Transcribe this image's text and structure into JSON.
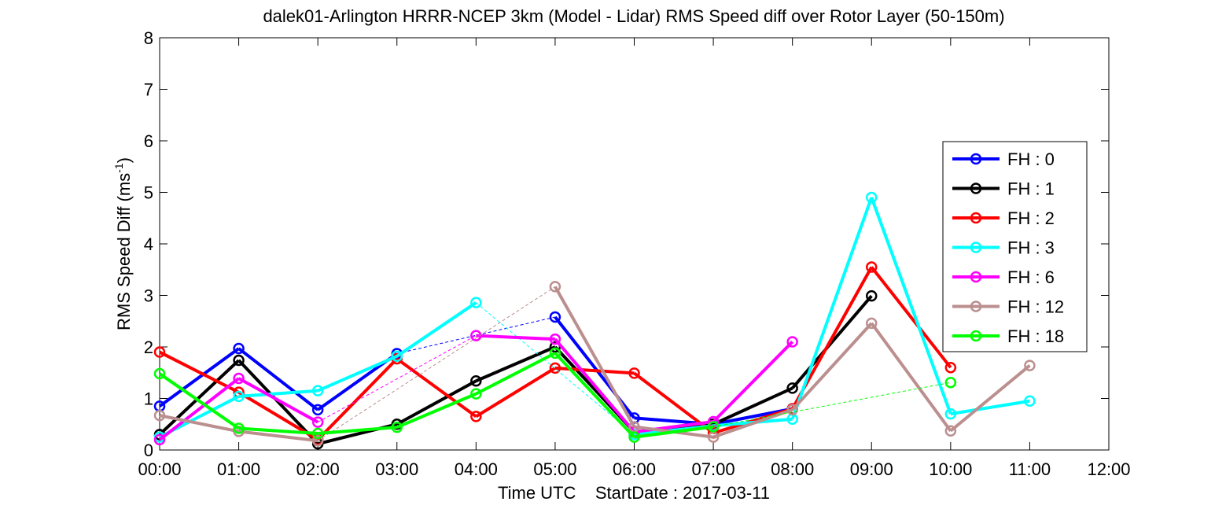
{
  "chart_data": {
    "type": "line",
    "title": "dalek01-Arlington HRRR-NCEP 3km (Model - Lidar) RMS Speed diff over Rotor Layer (50-150m)",
    "xlabel": "Time UTC    StartDate : 2017-03-11",
    "ylabel_main": "RMS Speed Diff (ms",
    "ylabel_sup": "-1",
    "ylabel_close": ")",
    "xlim": [
      0,
      12
    ],
    "ylim": [
      0,
      8
    ],
    "x_ticks": [
      0,
      1,
      2,
      3,
      4,
      5,
      6,
      7,
      8,
      9,
      10,
      11,
      12
    ],
    "x_tick_labels": [
      "00:00",
      "01:00",
      "02:00",
      "03:00",
      "04:00",
      "05:00",
      "06:00",
      "07:00",
      "08:00",
      "09:00",
      "10:00",
      "11:00",
      "12:00"
    ],
    "y_ticks": [
      0,
      1,
      2,
      3,
      4,
      5,
      6,
      7,
      8
    ],
    "y_tick_labels": [
      "0",
      "1",
      "2",
      "3",
      "4",
      "5",
      "6",
      "7",
      "8"
    ],
    "grid": false,
    "legend_position": "right",
    "series": [
      {
        "name": "FH : 0",
        "color": "#0000ff",
        "x": [
          0,
          1,
          2,
          3,
          5,
          6,
          7,
          8
        ],
        "y": [
          0.85,
          1.97,
          0.78,
          1.87,
          2.58,
          0.62,
          0.5,
          0.8
        ]
      },
      {
        "name": "FH : 1",
        "color": "#000000",
        "x": [
          0,
          1,
          2,
          3,
          4,
          5,
          6,
          7,
          8,
          9
        ],
        "y": [
          0.3,
          1.74,
          0.12,
          0.5,
          1.34,
          2.0,
          0.35,
          0.5,
          1.2,
          2.99
        ]
      },
      {
        "name": "FH : 2",
        "color": "#ff0000",
        "x": [
          0,
          1,
          2,
          3,
          4,
          5,
          6,
          7,
          8,
          9,
          10
        ],
        "y": [
          1.9,
          1.12,
          0.2,
          1.77,
          0.65,
          1.59,
          1.49,
          0.33,
          0.8,
          3.55,
          1.6
        ]
      },
      {
        "name": "FH : 3",
        "color": "#00ffff",
        "x": [
          0,
          1,
          2,
          3,
          4,
          6,
          7,
          8,
          9,
          10,
          11
        ],
        "y": [
          0.25,
          1.04,
          1.15,
          1.82,
          2.86,
          0.3,
          0.47,
          0.6,
          4.9,
          0.7,
          0.95
        ]
      },
      {
        "name": "FH : 6",
        "color": "#ff00ff",
        "x": [
          0,
          1,
          2,
          4,
          5,
          6,
          7,
          8
        ],
        "y": [
          0.2,
          1.39,
          0.54,
          2.22,
          2.15,
          0.35,
          0.55,
          2.1
        ]
      },
      {
        "name": "FH : 12",
        "color": "#bc8f8f",
        "x": [
          0,
          1,
          2,
          5,
          6,
          7,
          8,
          9,
          10,
          11
        ],
        "y": [
          0.67,
          0.36,
          0.18,
          3.17,
          0.45,
          0.25,
          0.78,
          2.46,
          0.37,
          1.64
        ]
      },
      {
        "name": "FH : 18",
        "color": "#00ff00",
        "x": [
          0,
          1,
          2,
          3,
          4,
          5,
          6,
          7,
          8,
          10
        ],
        "y": [
          1.48,
          0.42,
          0.32,
          0.44,
          1.09,
          1.88,
          0.25,
          0.45,
          null,
          1.31
        ]
      }
    ]
  }
}
